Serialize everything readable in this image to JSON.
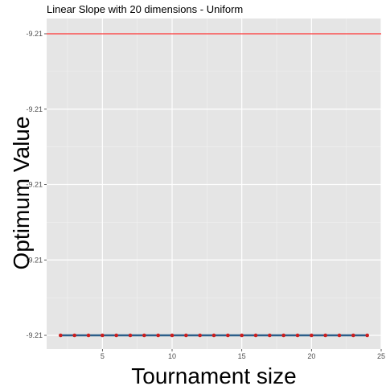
{
  "chart_data": {
    "type": "line",
    "title": "Linear Slope with 20 dimensions -  Uniform",
    "xlabel": "Tournament size",
    "ylabel": "Optimum Value",
    "xlim": [
      1.0,
      25.0
    ],
    "ylim": [
      -9.2104,
      -9.21
    ],
    "x_ticks": [
      5,
      10,
      15,
      20,
      25
    ],
    "x_tick_labels": [
      "5",
      "10",
      "15",
      "20",
      "25"
    ],
    "y_ticks": [
      -9.2104,
      -9.2103,
      -9.2102,
      -9.2101,
      -9.21
    ],
    "y_tick_labels": [
      "-9.21",
      "-9.21",
      "-9.21",
      "-9.21",
      "-9.21"
    ],
    "grid": true,
    "reference_line": {
      "y": -9.21,
      "color": "#ff0000"
    },
    "series": [
      {
        "x": [
          2,
          3,
          4,
          5,
          6,
          7,
          8,
          9,
          10,
          11,
          12,
          13,
          14,
          15,
          16,
          17,
          18,
          19,
          20,
          21,
          22,
          23,
          24
        ],
        "values": [
          -9.2104,
          -9.2104,
          -9.2104,
          -9.2104,
          -9.2104,
          -9.2104,
          -9.2104,
          -9.2104,
          -9.2104,
          -9.2104,
          -9.2104,
          -9.2104,
          -9.2104,
          -9.2104,
          -9.2104,
          -9.2104,
          -9.2104,
          -9.2104,
          -9.2104,
          -9.2104,
          -9.2104,
          -9.2104,
          -9.2104
        ],
        "line_color": "#2c5f8a",
        "point_color": "#cc1f1f"
      }
    ]
  }
}
